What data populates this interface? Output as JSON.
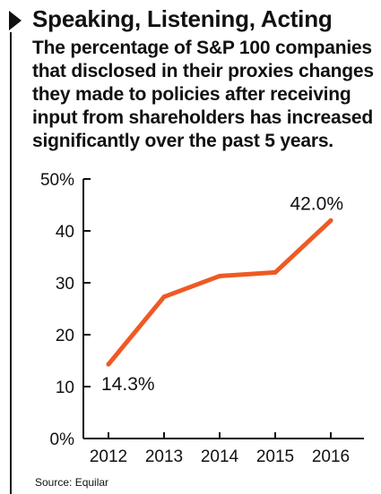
{
  "header": {
    "title": "Speaking, Listening, Acting",
    "subtitle": "The percentage of S&P 100 companies that disclosed in their proxies changes they made to policies after receiving input from shareholders has increased significantly over the past 5 years."
  },
  "footer": {
    "source": "Source: Equilar"
  },
  "colors": {
    "line": "#ee5a24",
    "axis": "#111111",
    "text": "#111111"
  },
  "chart_data": {
    "type": "line",
    "categories": [
      "2012",
      "2013",
      "2014",
      "2015",
      "2016"
    ],
    "values": [
      14.3,
      27.3,
      31.3,
      32.0,
      42.0
    ],
    "ylim": [
      0,
      50
    ],
    "yticks": [
      0,
      10,
      20,
      30,
      40,
      50
    ],
    "ytick_labels": [
      "0%",
      "10",
      "20",
      "30",
      "40",
      "50%"
    ],
    "annotations": [
      {
        "index": 0,
        "text": "14.3%",
        "position": "below"
      },
      {
        "index": 4,
        "text": "42.0%",
        "position": "above"
      }
    ],
    "grid": false,
    "legend": "none",
    "xlabel": "",
    "ylabel": ""
  }
}
